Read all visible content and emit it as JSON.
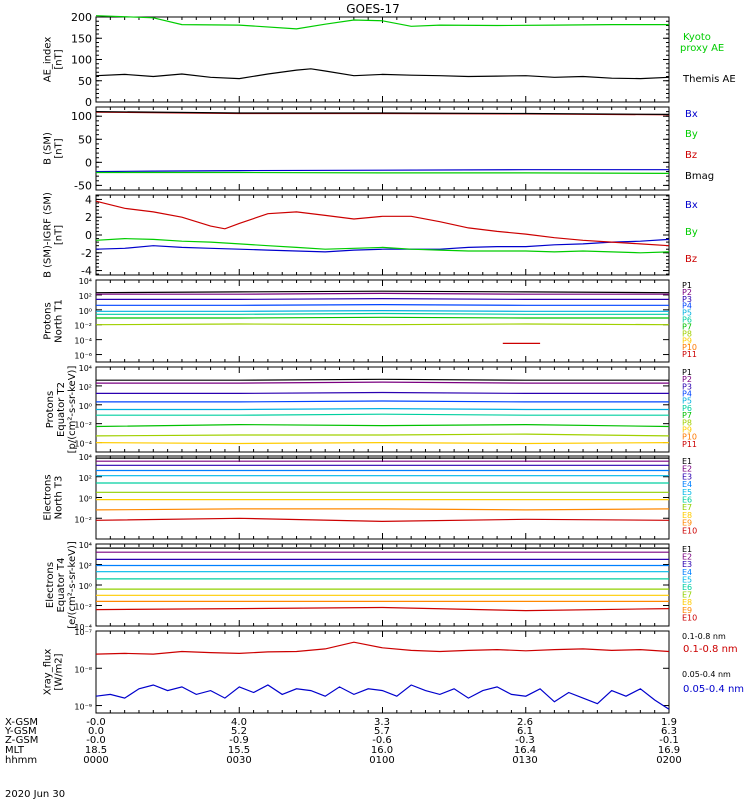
{
  "title": "GOES-17",
  "date": "2020 Jun 30",
  "ephemeris": {
    "row_labels": [
      "X-GSM",
      "Y-GSM",
      "Z-GSM",
      "MLT",
      "hhmm"
    ],
    "columns": [
      [
        "-0.0",
        "0.0",
        "-0.0",
        "18.5",
        "0000"
      ],
      [
        "4.0",
        "5.2",
        "-0.9",
        "15.5",
        "0030"
      ],
      [
        "3.3",
        "5.7",
        "-0.6",
        "16.0",
        "0100"
      ],
      [
        "2.6",
        "6.1",
        "-0.3",
        "16.4",
        "0130"
      ],
      [
        "1.9",
        "6.3",
        "-0.1",
        "16.9",
        "0200"
      ]
    ]
  },
  "colors": {
    "black": "#000000",
    "green": "#00cc00",
    "blue": "#0000cc",
    "red": "#cc0000",
    "p": [
      "#000000",
      "#7a0080",
      "#2a00b0",
      "#0044ff",
      "#00b0e0",
      "#00cfa0",
      "#00c000",
      "#a0d000",
      "#ffcc00",
      "#ff7a00",
      "#cc0000"
    ],
    "e": [
      "#000000",
      "#7a0080",
      "#2a00b0",
      "#0080ff",
      "#00b8e8",
      "#00cfa0",
      "#90d000",
      "#ffcc00",
      "#ff8800",
      "#ee4400",
      "#cc0000"
    ]
  },
  "chart_data": [
    {
      "type": "line",
      "id": "ae",
      "ylabel": [
        "AE_index",
        "[nT]"
      ],
      "ylim": [
        0,
        200
      ],
      "yticks": [
        "0",
        "50",
        "100",
        "150",
        "200"
      ],
      "series": [
        {
          "name": "Kyoto proxy AE",
          "color": "green",
          "x": [
            0,
            0.2,
            0.3,
            0.5,
            0.7,
            0.8,
            0.9,
            1.0,
            1.1,
            1.2,
            1.4,
            1.6,
            1.8,
            2.0
          ],
          "y": [
            203,
            198,
            182,
            181,
            172,
            183,
            193,
            191,
            178,
            181,
            180,
            181,
            182,
            182
          ]
        },
        {
          "name": "Themis AE",
          "color": "black",
          "x": [
            0,
            0.1,
            0.2,
            0.3,
            0.4,
            0.5,
            0.6,
            0.7,
            0.75,
            0.8,
            0.9,
            1.0,
            1.1,
            1.2,
            1.3,
            1.4,
            1.5,
            1.6,
            1.7,
            1.8,
            1.9,
            2.0
          ],
          "y": [
            62,
            65,
            60,
            66,
            58,
            55,
            66,
            75,
            78,
            73,
            62,
            65,
            63,
            62,
            60,
            61,
            62,
            58,
            60,
            56,
            55,
            58
          ]
        }
      ]
    },
    {
      "type": "line",
      "id": "b",
      "ylabel": [
        "B (SM)",
        "[nT]"
      ],
      "ylim": [
        -60,
        120
      ],
      "yticks": [
        "-50",
        "0",
        "50",
        "100"
      ],
      "series": [
        {
          "name": "Bx",
          "color": "blue",
          "x": [
            0,
            0.2,
            0.5,
            1.0,
            1.5,
            2.0
          ],
          "y": [
            -20,
            -19,
            -18,
            -17,
            -16,
            -16
          ]
        },
        {
          "name": "By",
          "color": "green",
          "x": [
            0,
            0.5,
            1.0,
            1.5,
            2.0
          ],
          "y": [
            -22,
            -22,
            -23,
            -23,
            -24
          ]
        },
        {
          "name": "Bz",
          "color": "red",
          "x": [
            0,
            0.5,
            1.0,
            1.5,
            2.0
          ],
          "y": [
            109,
            106,
            106,
            105,
            103
          ]
        },
        {
          "name": "Bmag",
          "color": "black",
          "x": [
            0,
            0.5,
            1.0,
            1.5,
            2.0
          ],
          "y": [
            110,
            107,
            107,
            106,
            104
          ]
        }
      ]
    },
    {
      "type": "line",
      "id": "dbb",
      "ylabel": [
        "B (SM)-IGRF (SM)",
        "[nT]"
      ],
      "ylim": [
        -4.5,
        4.5
      ],
      "yticks": [
        "-4",
        "-2",
        "0",
        "2",
        "4"
      ],
      "series": [
        {
          "name": "Bx",
          "color": "blue",
          "x": [
            0,
            0.1,
            0.2,
            0.3,
            0.4,
            0.5,
            0.6,
            0.7,
            0.8,
            0.9,
            1.0,
            1.1,
            1.2,
            1.3,
            1.4,
            1.5,
            1.6,
            1.7,
            1.8,
            1.9,
            2.0
          ],
          "y": [
            -1.6,
            -1.5,
            -1.2,
            -1.4,
            -1.5,
            -1.6,
            -1.7,
            -1.8,
            -1.9,
            -1.7,
            -1.6,
            -1.6,
            -1.6,
            -1.4,
            -1.3,
            -1.3,
            -1.1,
            -1.0,
            -0.8,
            -0.7,
            -0.5
          ]
        },
        {
          "name": "By",
          "color": "green",
          "x": [
            0,
            0.1,
            0.2,
            0.3,
            0.4,
            0.5,
            0.6,
            0.7,
            0.8,
            0.9,
            1.0,
            1.1,
            1.2,
            1.3,
            1.4,
            1.5,
            1.6,
            1.7,
            1.8,
            1.9,
            2.0
          ],
          "y": [
            -0.6,
            -0.4,
            -0.5,
            -0.7,
            -0.8,
            -1.0,
            -1.2,
            -1.4,
            -1.6,
            -1.5,
            -1.4,
            -1.6,
            -1.7,
            -1.8,
            -1.8,
            -1.8,
            -1.9,
            -1.8,
            -1.9,
            -2.0,
            -1.9
          ]
        },
        {
          "name": "Bz",
          "color": "red",
          "x": [
            0,
            0.1,
            0.2,
            0.3,
            0.4,
            0.45,
            0.5,
            0.6,
            0.7,
            0.8,
            0.9,
            1.0,
            1.1,
            1.2,
            1.3,
            1.4,
            1.5,
            1.6,
            1.7,
            1.8,
            1.9,
            2.0
          ],
          "y": [
            3.8,
            3.0,
            2.6,
            2.0,
            1.0,
            0.7,
            1.3,
            2.4,
            2.6,
            2.2,
            1.8,
            2.1,
            2.1,
            1.5,
            0.8,
            0.4,
            0.1,
            -0.3,
            -0.6,
            -0.8,
            -1.0,
            -1.2
          ]
        }
      ]
    },
    {
      "type": "line",
      "id": "pn",
      "ylabel": [
        "Protons",
        "North T1"
      ],
      "log": true,
      "ylim": [
        -7,
        4
      ],
      "yticks": [
        "10⁴",
        "10²",
        "10⁰",
        "10⁻²",
        "10⁻⁴",
        "10⁻⁶"
      ],
      "ytick_exp": [
        4,
        2,
        0,
        -2,
        -4,
        -6
      ],
      "series": [
        {
          "name": "P1",
          "color": 0,
          "y": [
            2.3,
            2.4,
            2.5,
            2.4,
            2.3
          ]
        },
        {
          "name": "P2",
          "color": 1,
          "y": [
            2.1,
            2.1,
            2.2,
            2.1,
            2.1
          ]
        },
        {
          "name": "P3",
          "color": 2,
          "y": [
            1.4,
            1.4,
            1.5,
            1.4,
            1.4
          ]
        },
        {
          "name": "P4",
          "color": 3,
          "y": [
            0.6,
            0.6,
            0.7,
            0.6,
            0.6
          ]
        },
        {
          "name": "P5",
          "color": 4,
          "y": [
            -0.2,
            -0.2,
            -0.1,
            -0.2,
            -0.2
          ]
        },
        {
          "name": "P6",
          "color": 5,
          "y": [
            -0.6,
            -0.6,
            -0.5,
            -0.6,
            -0.6
          ]
        },
        {
          "name": "P7",
          "color": 6,
          "y": [
            -1.1,
            -1.1,
            -1.0,
            -1.1,
            -1.1
          ]
        },
        {
          "name": "P8",
          "color": 7,
          "y": [
            -2.0,
            -1.9,
            -2.0,
            -1.9,
            -2.0
          ]
        },
        {
          "name": "P9",
          "color": 8,
          "y": []
        },
        {
          "name": "P10",
          "color": 9,
          "y": []
        },
        {
          "name": "P11",
          "color": 10,
          "y": [
            -4.5
          ],
          "seg": [
            1.42,
            1.55
          ]
        }
      ]
    },
    {
      "type": "line",
      "id": "pe",
      "ylabel": [
        "Protons",
        "Equator T2",
        "[p/(cm²-s-sr-keV)]"
      ],
      "log": true,
      "ylim": [
        -5,
        4
      ],
      "yticks": [
        "10⁴",
        "10²",
        "10⁰",
        "10⁻²",
        "10⁻⁴"
      ],
      "ytick_exp": [
        4,
        2,
        0,
        -2,
        -4
      ],
      "series": [
        {
          "name": "P1",
          "color": 0,
          "y": [
            2.6,
            2.6,
            2.7,
            2.6,
            2.6
          ]
        },
        {
          "name": "P2",
          "color": 1,
          "y": [
            2.3,
            2.3,
            2.4,
            2.3,
            2.3
          ]
        },
        {
          "name": "P3",
          "color": 2,
          "y": [
            1.2,
            1.2,
            1.3,
            1.2,
            1.2
          ]
        },
        {
          "name": "P4",
          "color": 3,
          "y": [
            0.3,
            0.3,
            0.4,
            0.3,
            0.3
          ]
        },
        {
          "name": "P5",
          "color": 4,
          "y": [
            -0.5,
            -0.5,
            -0.4,
            -0.5,
            -0.5
          ]
        },
        {
          "name": "P6",
          "color": 5,
          "y": [
            -1.1,
            -1.1,
            -1.0,
            -1.1,
            -1.1
          ]
        },
        {
          "name": "P7",
          "color": 6,
          "y": [
            -2.3,
            -2.1,
            -2.2,
            -2.1,
            -2.3
          ]
        },
        {
          "name": "P8",
          "color": 7,
          "y": [
            -3.3,
            -3.2,
            -3.2,
            -3.1,
            -3.3
          ]
        },
        {
          "name": "P9",
          "color": 8,
          "y": [
            -4.0,
            -4.1,
            -4.0,
            -4.1,
            -4.0
          ]
        },
        {
          "name": "P10",
          "color": 9,
          "y": []
        },
        {
          "name": "P11",
          "color": 10,
          "y": []
        }
      ]
    },
    {
      "type": "line",
      "id": "en",
      "ylabel": [
        "Electrons",
        "North T3"
      ],
      "log": true,
      "ylim": [
        -4,
        4
      ],
      "yticks": [
        "10⁴",
        "10²",
        "10⁰",
        "10⁻²"
      ],
      "ytick_exp": [
        4,
        2,
        0,
        -2
      ],
      "series": [
        {
          "name": "E1",
          "color": 0,
          "y": [
            3.8,
            3.8,
            3.8,
            3.8,
            3.8
          ]
        },
        {
          "name": "E2",
          "color": 1,
          "y": [
            3.5,
            3.5,
            3.5,
            3.5,
            3.5
          ]
        },
        {
          "name": "E3",
          "color": 2,
          "y": [
            3.1,
            3.1,
            3.1,
            3.1,
            3.1
          ]
        },
        {
          "name": "E4",
          "color": 3,
          "y": [
            2.6,
            2.6,
            2.6,
            2.6,
            2.6
          ]
        },
        {
          "name": "E5",
          "color": 4,
          "y": [
            2.1,
            2.1,
            2.1,
            2.1,
            2.1
          ]
        },
        {
          "name": "E6",
          "color": 5,
          "y": [
            1.4,
            1.4,
            1.4,
            1.4,
            1.4
          ]
        },
        {
          "name": "E7",
          "color": 6,
          "y": [
            0.5,
            0.5,
            0.5,
            0.5,
            0.5
          ]
        },
        {
          "name": "E8",
          "color": 7,
          "y": [
            -0.2,
            -0.2,
            -0.2,
            -0.2,
            -0.2
          ]
        },
        {
          "name": "E9",
          "color": 8,
          "y": [
            -1.2,
            -1.1,
            -1.1,
            -1.2,
            -1.1
          ]
        },
        {
          "name": "E10",
          "color": 10,
          "y": [
            -2.2,
            -2.0,
            -2.3,
            -2.1,
            -2.2
          ]
        }
      ]
    },
    {
      "type": "line",
      "id": "ee",
      "ylabel": [
        "Electrons",
        "Equator T4",
        "[e/(cm²-s-sr-keV)]"
      ],
      "log": true,
      "ylim": [
        -4,
        4
      ],
      "yticks": [
        "10⁴",
        "10²",
        "10⁰",
        "10⁻²",
        "10⁻⁴"
      ],
      "ytick_exp": [
        4,
        2,
        0,
        -2,
        -4
      ],
      "series": [
        {
          "name": "E1",
          "color": 0,
          "y": [
            3.6,
            3.6,
            3.6,
            3.6,
            3.6
          ]
        },
        {
          "name": "E2",
          "color": 1,
          "y": [
            3.2,
            3.2,
            3.2,
            3.2,
            3.2
          ]
        },
        {
          "name": "E3",
          "color": 2,
          "y": [
            2.5,
            2.5,
            2.5,
            2.5,
            2.5
          ]
        },
        {
          "name": "E4",
          "color": 3,
          "y": [
            1.9,
            1.9,
            1.9,
            1.9,
            1.9
          ]
        },
        {
          "name": "E5",
          "color": 4,
          "y": [
            1.3,
            1.3,
            1.3,
            1.3,
            1.3
          ]
        },
        {
          "name": "E6",
          "color": 5,
          "y": [
            0.6,
            0.6,
            0.6,
            0.6,
            0.6
          ]
        },
        {
          "name": "E7",
          "color": 6,
          "y": [
            -0.4,
            -0.4,
            -0.4,
            -0.4,
            -0.4
          ]
        },
        {
          "name": "E8",
          "color": 7,
          "y": [
            -1.0,
            -1.0,
            -1.0,
            -1.0,
            -1.0
          ]
        },
        {
          "name": "E9",
          "color": 8,
          "y": [
            -1.6,
            -1.6,
            -1.6,
            -1.6,
            -1.6
          ]
        },
        {
          "name": "E10",
          "color": 10,
          "y": [
            -2.4,
            -2.3,
            -2.2,
            -2.5,
            -2.3
          ]
        }
      ]
    },
    {
      "type": "line",
      "id": "xray",
      "ylabel": [
        "Xray_flux",
        "[W/m2]"
      ],
      "log": true,
      "ylim": [
        -9.2,
        -7
      ],
      "yticks": [
        "10⁻⁷",
        "10⁻⁸",
        "10⁻⁹"
      ],
      "ytick_exp": [
        -7,
        -8,
        -9
      ],
      "series": [
        {
          "name": "0.1-0.8 nm",
          "color": "red",
          "x": [
            0,
            0.1,
            0.2,
            0.3,
            0.4,
            0.5,
            0.6,
            0.7,
            0.8,
            0.9,
            1.0,
            1.1,
            1.2,
            1.3,
            1.4,
            1.5,
            1.6,
            1.7,
            1.8,
            1.9,
            2.0
          ],
          "y": [
            -7.62,
            -7.6,
            -7.62,
            -7.55,
            -7.58,
            -7.6,
            -7.56,
            -7.55,
            -7.48,
            -7.3,
            -7.45,
            -7.52,
            -7.55,
            -7.52,
            -7.5,
            -7.53,
            -7.5,
            -7.48,
            -7.52,
            -7.5,
            -7.55
          ]
        },
        {
          "name": "0.05-0.4 nm",
          "color": "blue",
          "x": [
            0,
            0.05,
            0.1,
            0.15,
            0.2,
            0.25,
            0.3,
            0.35,
            0.4,
            0.45,
            0.5,
            0.55,
            0.6,
            0.65,
            0.7,
            0.75,
            0.8,
            0.85,
            0.9,
            0.95,
            1.0,
            1.05,
            1.1,
            1.15,
            1.2,
            1.25,
            1.3,
            1.35,
            1.4,
            1.45,
            1.5,
            1.55,
            1.6,
            1.65,
            1.7,
            1.75,
            1.8,
            1.85,
            1.9,
            1.95,
            2.0
          ],
          "y": [
            -8.75,
            -8.7,
            -8.8,
            -8.55,
            -8.45,
            -8.6,
            -8.5,
            -8.7,
            -8.6,
            -8.8,
            -8.5,
            -8.65,
            -8.45,
            -8.7,
            -8.55,
            -8.6,
            -8.75,
            -8.5,
            -8.7,
            -8.55,
            -8.6,
            -8.75,
            -8.45,
            -8.6,
            -8.7,
            -8.55,
            -8.8,
            -8.6,
            -8.5,
            -8.7,
            -8.75,
            -8.55,
            -8.9,
            -8.65,
            -8.8,
            -8.95,
            -8.6,
            -8.75,
            -8.55,
            -8.85,
            -9.1
          ]
        }
      ]
    }
  ],
  "xaxis": {
    "xlim": [
      0,
      2
    ]
  },
  "right_labels": {
    "ae": [
      [
        "Kyoto",
        "proxy AE",
        "green"
      ],
      [
        "Themis AE",
        "",
        "black"
      ]
    ],
    "b": [
      [
        "Bx",
        "blue"
      ],
      [
        "By",
        "green"
      ],
      [
        "Bz",
        "red"
      ],
      [
        "Bmag",
        "black"
      ]
    ],
    "dbb": [
      [
        "Bx",
        "blue"
      ],
      [
        "By",
        "green"
      ],
      [
        "Bz",
        "red"
      ]
    ]
  }
}
